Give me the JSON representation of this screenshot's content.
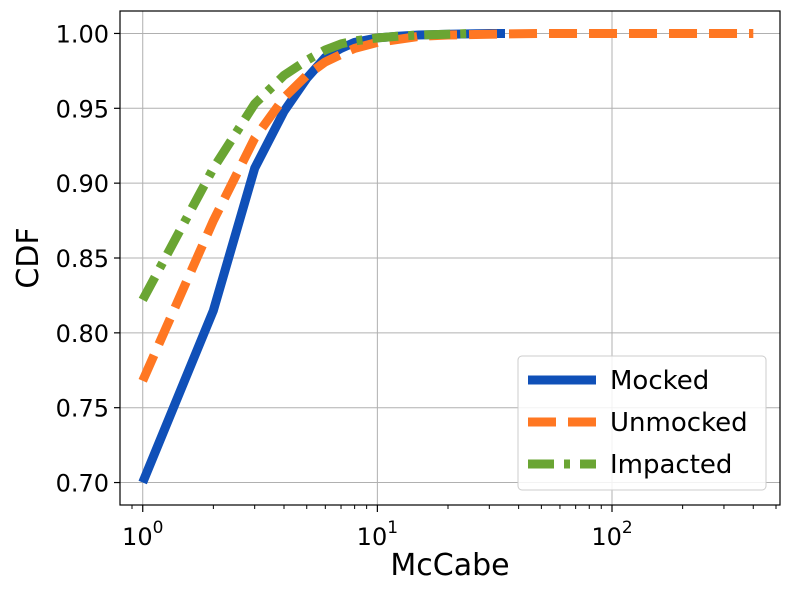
{
  "chart_data": {
    "type": "line",
    "title": "",
    "xlabel": "McCabe",
    "ylabel": "CDF",
    "xscale": "log",
    "xlim": [
      0.8,
      520
    ],
    "ylim": [
      0.685,
      1.015
    ],
    "grid": true,
    "legend_placement": "bottom-right",
    "x_ticks": [
      {
        "value": 1,
        "base": "10",
        "exp": "0"
      },
      {
        "value": 10,
        "base": "10",
        "exp": "1"
      },
      {
        "value": 100,
        "base": "10",
        "exp": "2"
      }
    ],
    "y_ticks": [
      {
        "value": 0.7,
        "label": "0.70"
      },
      {
        "value": 0.75,
        "label": "0.75"
      },
      {
        "value": 0.8,
        "label": "0.80"
      },
      {
        "value": 0.85,
        "label": "0.85"
      },
      {
        "value": 0.9,
        "label": "0.90"
      },
      {
        "value": 0.95,
        "label": "0.95"
      },
      {
        "value": 1.0,
        "label": "1.00"
      }
    ],
    "series": [
      {
        "name": "Mocked",
        "color": "#1050b8",
        "style": "solid",
        "x": [
          1,
          2,
          3,
          4,
          5,
          6,
          7,
          8,
          10,
          12,
          15,
          20,
          30,
          35
        ],
        "y": [
          0.7,
          0.815,
          0.91,
          0.948,
          0.97,
          0.984,
          0.99,
          0.994,
          0.997,
          0.998,
          0.999,
          0.9995,
          1.0,
          1.0
        ]
      },
      {
        "name": "Unmocked",
        "color": "#ff7722",
        "style": "dashed",
        "x": [
          1,
          2,
          3,
          4,
          5,
          6,
          7,
          8,
          10,
          15,
          20,
          30,
          50,
          100,
          200,
          400
        ],
        "y": [
          0.768,
          0.875,
          0.93,
          0.957,
          0.972,
          0.981,
          0.986,
          0.99,
          0.994,
          0.998,
          0.999,
          0.9995,
          1.0,
          1.0,
          1.0,
          1.0
        ]
      },
      {
        "name": "Impacted",
        "color": "#6aa533",
        "style": "dashdot",
        "x": [
          1,
          2,
          3,
          4,
          5,
          6,
          7,
          8,
          10,
          12,
          15,
          20,
          25
        ],
        "y": [
          0.822,
          0.91,
          0.953,
          0.972,
          0.982,
          0.989,
          0.993,
          0.995,
          0.997,
          0.998,
          0.999,
          0.9995,
          1.0
        ]
      }
    ]
  }
}
